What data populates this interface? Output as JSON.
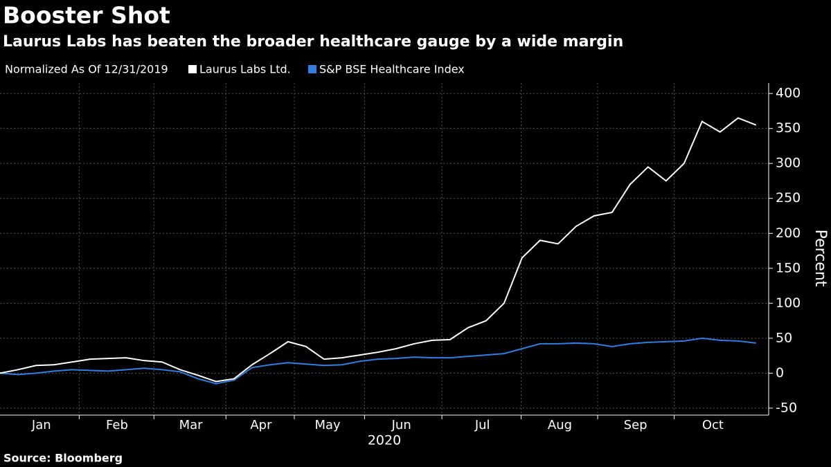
{
  "chart_data": {
    "type": "line",
    "title": "Booster Shot",
    "subtitle": "Laurus Labs has beaten the broader healthcare gauge by a wide margin",
    "note": "Normalized As Of 12/31/2019",
    "y_label": "Percent",
    "x_label": "2020",
    "source": "Source: Bloomberg",
    "series": [
      {
        "name": "Laurus Labs Ltd.",
        "color": "#ffffff",
        "values": [
          0,
          5,
          11,
          12,
          16,
          20,
          21,
          22,
          18,
          16,
          5,
          -3,
          -12,
          -8,
          12,
          28,
          45,
          38,
          20,
          22,
          26,
          30,
          35,
          42,
          47,
          48,
          65,
          75,
          100,
          165,
          190,
          185,
          210,
          225,
          230,
          270,
          295,
          275,
          300,
          360,
          345,
          365,
          355
        ]
      },
      {
        "name": "S&P BSE Healthcare Index",
        "color": "#2f7fe0",
        "values": [
          0,
          -2,
          0,
          3,
          5,
          4,
          3,
          5,
          7,
          5,
          2,
          -8,
          -15,
          -10,
          8,
          12,
          15,
          13,
          11,
          12,
          17,
          20,
          21,
          23,
          22,
          22,
          24,
          26,
          28,
          35,
          42,
          42,
          43,
          42,
          38,
          42,
          44,
          45,
          46,
          50,
          47,
          46,
          43
        ]
      }
    ],
    "xlim": [
      0,
      42.7
    ],
    "xticks": [
      {
        "value": 2.3,
        "label": "Jan"
      },
      {
        "value": 6.5,
        "label": "Feb"
      },
      {
        "value": 10.6,
        "label": "Mar"
      },
      {
        "value": 14.5,
        "label": "Apr"
      },
      {
        "value": 18.2,
        "label": "May"
      },
      {
        "value": 22.3,
        "label": "Jun"
      },
      {
        "value": 26.8,
        "label": "Jul"
      },
      {
        "value": 31.1,
        "label": "Aug"
      },
      {
        "value": 35.3,
        "label": "Sep"
      },
      {
        "value": 39.6,
        "label": "Oct"
      }
    ],
    "ylim": [
      -60,
      415
    ],
    "yticks": [
      -50,
      0,
      50,
      100,
      150,
      200,
      250,
      300,
      350,
      400
    ],
    "grid": true
  }
}
